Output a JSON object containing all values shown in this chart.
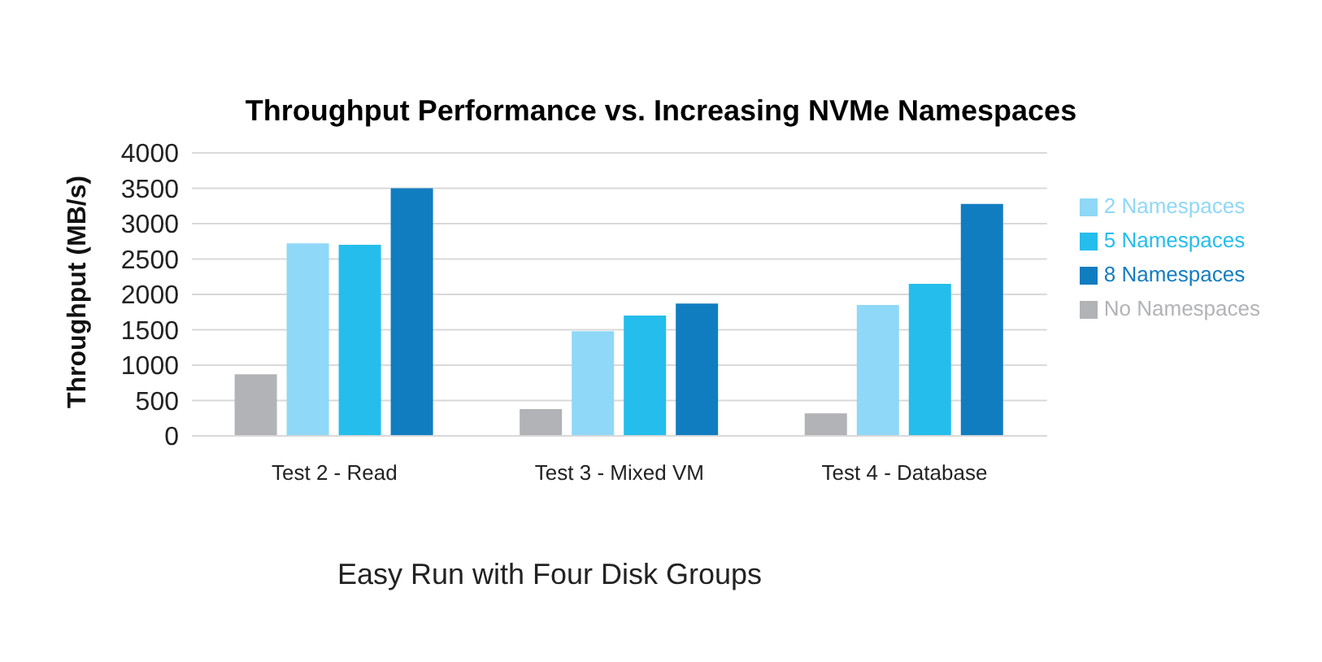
{
  "chart_data": {
    "type": "bar",
    "title": "Throughput Performance vs. Increasing NVMe Namespaces",
    "xlabel": "Easy Run with Four Disk Groups",
    "ylabel": "Throughput (MB/s)",
    "categories": [
      "Test 2 - Read",
      "Test 3 - Mixed VM",
      "Test 4 - Database"
    ],
    "series": [
      {
        "name": "No Namespaces",
        "color": "#b1b3b6",
        "values": [
          870,
          380,
          320
        ]
      },
      {
        "name": "2 Namespaces",
        "color": "#8fd8f7",
        "values": [
          2720,
          1480,
          1850
        ]
      },
      {
        "name": "5 Namespaces",
        "color": "#25bdec",
        "values": [
          2700,
          1700,
          2150
        ]
      },
      {
        "name": "8 Namespaces",
        "color": "#117dc1",
        "values": [
          3500,
          1870,
          3280
        ]
      }
    ],
    "ylim": [
      0,
      4000
    ],
    "yticks": [
      0,
      500,
      1000,
      1500,
      2000,
      2500,
      3000,
      3500,
      4000
    ],
    "grid": "y",
    "legend": "right"
  }
}
